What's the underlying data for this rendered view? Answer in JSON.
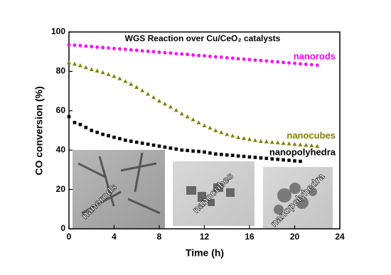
{
  "chart_data": {
    "type": "scatter",
    "title": "WGS Reaction over Cu/CeO₂ catalysts",
    "x_label": "Time (h)",
    "y_label": "CO conversion (%)",
    "xlim": [
      0,
      24
    ],
    "xticks": [
      0,
      4,
      8,
      12,
      16,
      20,
      24
    ],
    "ylim": [
      0,
      100
    ],
    "yticks": [
      0,
      20,
      40,
      60,
      80,
      100
    ],
    "x": [
      0,
      0.5,
      1,
      1.5,
      2,
      2.5,
      3,
      3.5,
      4,
      4.5,
      5,
      5.5,
      6,
      6.5,
      7,
      7.5,
      8,
      8.5,
      9,
      9.5,
      10,
      10.5,
      11,
      11.5,
      12,
      12.5,
      13,
      13.5,
      14,
      14.5,
      15,
      15.5,
      16,
      16.5,
      17,
      17.5,
      18,
      18.5,
      19,
      19.5,
      20,
      20.5,
      21,
      21.5,
      22
    ],
    "series": [
      {
        "name": "nanorods",
        "color": "#ff00ff",
        "marker": "circle",
        "values": [
          93.5,
          93.3,
          93.1,
          92.8,
          92.6,
          92.3,
          92.1,
          91.9,
          91.6,
          91.4,
          91.2,
          90.9,
          90.7,
          90.4,
          90.2,
          90.0,
          89.7,
          89.5,
          89.3,
          89.0,
          88.8,
          88.6,
          88.3,
          88.1,
          87.9,
          87.6,
          87.4,
          87.2,
          86.9,
          86.7,
          86.4,
          86.2,
          86.0,
          85.7,
          85.5,
          85.3,
          85.0,
          84.8,
          84.5,
          84.3,
          84.1,
          83.8,
          83.6,
          83.4,
          83.1
        ]
      },
      {
        "name": "nanocubes",
        "color": "#808000",
        "marker": "triangle",
        "values": [
          84.5,
          83.8,
          83,
          82,
          81,
          80.3,
          79.5,
          78.5,
          77.5,
          76.3,
          75,
          73.5,
          72,
          70.3,
          68.5,
          66.8,
          65,
          63.5,
          62,
          60.3,
          58.5,
          57,
          55.5,
          54,
          52.5,
          51.3,
          50,
          49,
          48,
          47.3,
          46.5,
          46,
          45.5,
          45,
          44.5,
          44.3,
          44,
          43.8,
          43.5,
          43.3,
          43,
          42.8,
          42.5,
          42.3,
          42
        ]
      },
      {
        "name": "nanopolyhedra",
        "color": "#000000",
        "marker": "square",
        "values": [
          57,
          54,
          53,
          51.5,
          50,
          49,
          48,
          47.3,
          46.5,
          45.8,
          45,
          44.5,
          44,
          43.5,
          43,
          42.5,
          42,
          41.5,
          41,
          40.5,
          40,
          39.8,
          39.5,
          39.3,
          39,
          38.5,
          38,
          37.8,
          37.5,
          37.3,
          37,
          36.8,
          36.5,
          36.3,
          36,
          35.8,
          35.5,
          35.3,
          35,
          34.8,
          34.5,
          34.3,
          null,
          null,
          null
        ]
      }
    ],
    "insets": [
      "nanorods",
      "nanocubes",
      "nanopolyhedra"
    ]
  }
}
